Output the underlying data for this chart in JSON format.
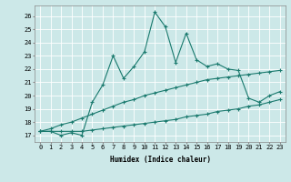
{
  "title": "",
  "xlabel": "Humidex (Indice chaleur)",
  "bg_color": "#cce8e8",
  "grid_color": "#ffffff",
  "line_color": "#1a7a6e",
  "x_values": [
    0,
    1,
    2,
    3,
    4,
    5,
    6,
    7,
    8,
    9,
    10,
    11,
    12,
    13,
    14,
    15,
    16,
    17,
    18,
    19,
    20,
    21,
    22,
    23
  ],
  "y_main": [
    17.3,
    17.3,
    17.0,
    17.2,
    17.0,
    19.5,
    20.8,
    23.0,
    21.3,
    22.2,
    23.3,
    26.3,
    25.2,
    22.5,
    24.7,
    22.7,
    22.2,
    22.4,
    22.0,
    21.9,
    19.8,
    19.5,
    20.0,
    20.3
  ],
  "y_upper": [
    17.3,
    17.5,
    17.8,
    18.0,
    18.3,
    18.6,
    18.9,
    19.2,
    19.5,
    19.7,
    20.0,
    20.2,
    20.4,
    20.6,
    20.8,
    21.0,
    21.2,
    21.3,
    21.4,
    21.5,
    21.6,
    21.7,
    21.8,
    21.9
  ],
  "y_lower": [
    17.3,
    17.3,
    17.3,
    17.3,
    17.3,
    17.4,
    17.5,
    17.6,
    17.7,
    17.8,
    17.9,
    18.0,
    18.1,
    18.2,
    18.4,
    18.5,
    18.6,
    18.8,
    18.9,
    19.0,
    19.2,
    19.3,
    19.5,
    19.7
  ],
  "ylim": [
    16.5,
    26.8
  ],
  "xlim": [
    -0.5,
    23.5
  ],
  "yticks": [
    17,
    18,
    19,
    20,
    21,
    22,
    23,
    24,
    25,
    26
  ],
  "xticks": [
    0,
    1,
    2,
    3,
    4,
    5,
    6,
    7,
    8,
    9,
    10,
    11,
    12,
    13,
    14,
    15,
    16,
    17,
    18,
    19,
    20,
    21,
    22,
    23
  ],
  "marker": "+",
  "markersize": 3,
  "linewidth": 0.8,
  "axis_fontsize": 5.5,
  "tick_fontsize": 5.0
}
